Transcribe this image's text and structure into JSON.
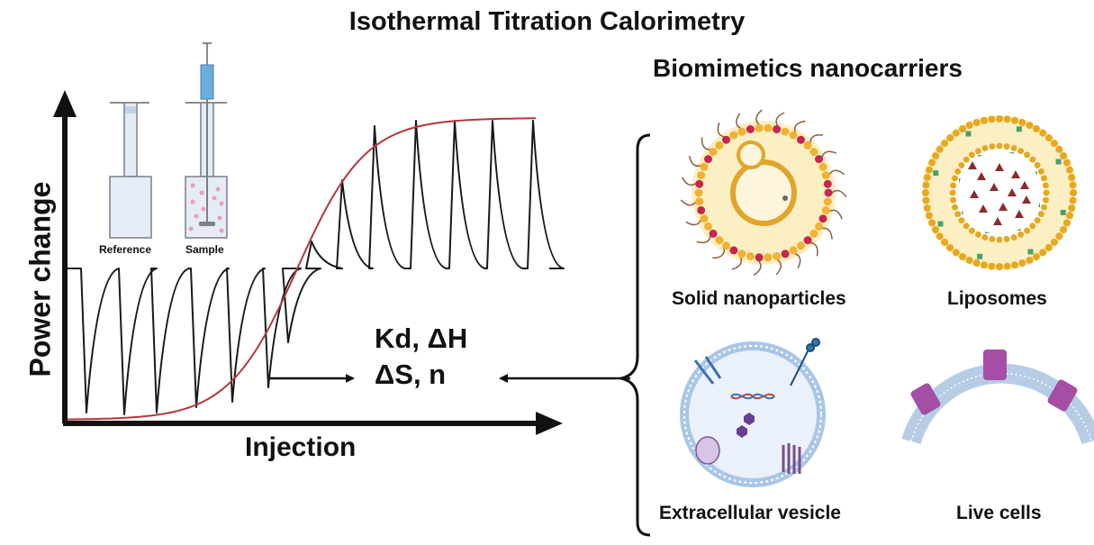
{
  "title": "Isothermal Titration Calorimetry",
  "carriers_heading": "Biomimetics nanocarriers",
  "axes": {
    "y_label": "Power change",
    "x_label": "Injection"
  },
  "cells": {
    "reference_label": "Reference",
    "sample_label": "Sample"
  },
  "parameters": {
    "line1": "Kd, ΔH",
    "line2": "ΔS, n"
  },
  "carriers": [
    {
      "label": "Solid nanoparticles"
    },
    {
      "label": "Liposomes"
    },
    {
      "label": "Extracellular vesicle"
    },
    {
      "label": "Live cells"
    }
  ],
  "colors": {
    "sigmoid": "#b5373a",
    "lipid_head": "#f0b230",
    "lipid_head_alt": "#c8264b",
    "liposome_core": "#fdf3d0",
    "vesicle_membrane": "#a9c6e6",
    "membrane_protein": "#a44ea5",
    "syringe_blue": "#6aaed9"
  }
}
